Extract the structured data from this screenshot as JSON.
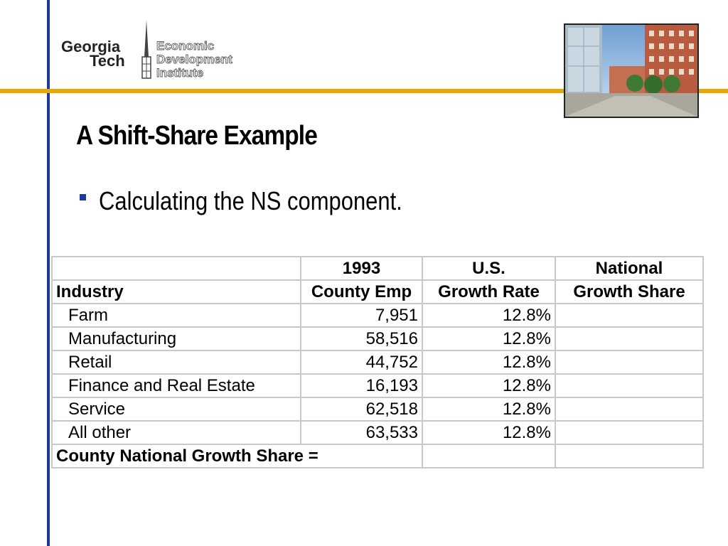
{
  "logo": {
    "line1": "Georgia",
    "line2": "Tech",
    "institute_lines": [
      "Economic",
      "Development",
      "Institute"
    ]
  },
  "slide": {
    "title": "A Shift-Share Example",
    "bullet": "Calculating the NS component."
  },
  "table": {
    "header_row1": [
      "",
      "1993",
      "U.S.",
      "National"
    ],
    "header_row2": [
      "Industry",
      "County Emp",
      "Growth Rate",
      "Growth Share"
    ],
    "rows": [
      {
        "industry": "Farm",
        "county_emp": "7,951",
        "growth_rate": "12.8%",
        "growth_share": ""
      },
      {
        "industry": "Manufacturing",
        "county_emp": "58,516",
        "growth_rate": "12.8%",
        "growth_share": ""
      },
      {
        "industry": "Retail",
        "county_emp": "44,752",
        "growth_rate": "12.8%",
        "growth_share": ""
      },
      {
        "industry": "Finance and Real Estate",
        "county_emp": "16,193",
        "growth_rate": "12.8%",
        "growth_share": ""
      },
      {
        "industry": "Service",
        "county_emp": "62,518",
        "growth_rate": "12.8%",
        "growth_share": ""
      },
      {
        "industry": "All other",
        "county_emp": "63,533",
        "growth_rate": "12.8%",
        "growth_share": ""
      }
    ],
    "total_label": "County National Growth Share ="
  },
  "colors": {
    "accent_blue": "#1a3a9c",
    "accent_gold": "#e8a800",
    "grid": "#c8c8c8"
  }
}
